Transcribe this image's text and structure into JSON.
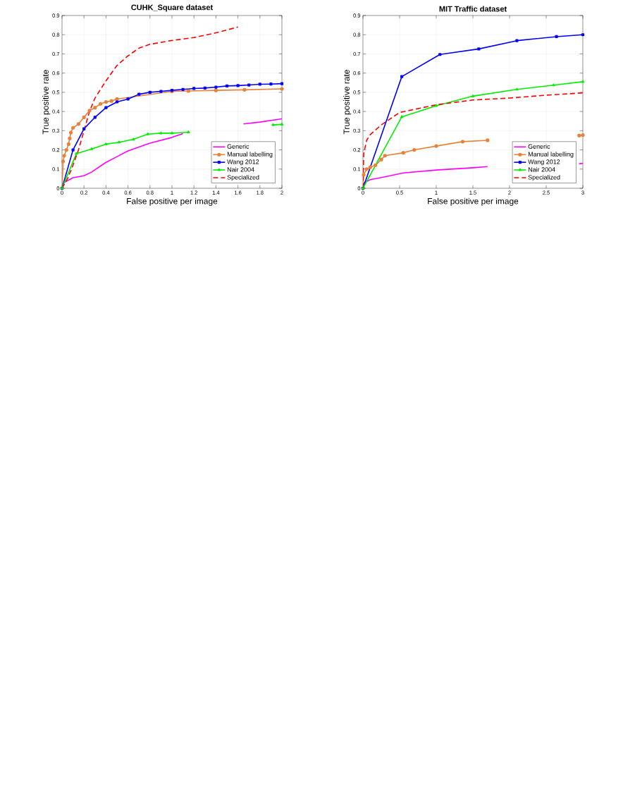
{
  "chart_data": [
    {
      "type": "line",
      "title": "CUHK_Square dataset",
      "xlabel": "False positive per image",
      "ylabel": "True positive rate",
      "xlim": [
        0,
        2
      ],
      "ylim": [
        0,
        0.9
      ],
      "xticks": [
        0,
        0.2,
        0.4,
        0.6,
        0.8,
        1,
        1.2,
        1.4,
        1.6,
        1.8,
        2
      ],
      "yticks": [
        0,
        0.1,
        0.2,
        0.3,
        0.4,
        0.5,
        0.6,
        0.7,
        0.8,
        0.9
      ],
      "grid": true,
      "legend": "bottom right",
      "series": [
        {
          "name": "Generic",
          "color": "#ff00ff",
          "marker": "none",
          "line_style": "solid",
          "x": [
            0,
            0.02,
            0.1,
            0.2,
            0.27,
            0.4,
            0.5,
            0.6,
            0.8,
            1.0,
            1.1,
            1.4,
            1.65,
            1.8,
            2
          ],
          "values": [
            0,
            0.03,
            0.055,
            0.065,
            0.085,
            0.135,
            0.165,
            0.195,
            0.235,
            0.265,
            0.285,
            null,
            0.335,
            0.345,
            0.362
          ]
        },
        {
          "name": "Manual labelling",
          "color": "#e8823a",
          "marker": "circle",
          "line_style": "solid",
          "x": [
            0,
            0.01,
            0.02,
            0.04,
            0.06,
            0.07,
            0.08,
            0.1,
            0.15,
            0.2,
            0.25,
            0.3,
            0.35,
            0.4,
            0.45,
            0.5,
            1.0,
            1.15,
            1.4,
            1.66,
            2
          ],
          "values": [
            0,
            0.14,
            0.17,
            0.2,
            0.23,
            0.26,
            0.29,
            0.315,
            0.335,
            0.37,
            0.405,
            0.42,
            0.44,
            0.45,
            0.455,
            0.465,
            0.505,
            0.507,
            0.51,
            0.513,
            0.518
          ]
        },
        {
          "name": "Wang 2012",
          "color": "#0000ff",
          "marker": "square",
          "line_style": "solid",
          "x": [
            0,
            0.1,
            0.2,
            0.3,
            0.4,
            0.5,
            0.6,
            0.7,
            0.8,
            0.9,
            1.0,
            1.1,
            1.2,
            1.3,
            1.4,
            1.5,
            1.6,
            1.7,
            1.8,
            1.9,
            2.0
          ],
          "values": [
            0,
            0.2,
            0.31,
            0.37,
            0.42,
            0.45,
            0.465,
            0.49,
            0.5,
            0.505,
            0.51,
            0.515,
            0.52,
            0.522,
            0.527,
            0.533,
            0.535,
            0.538,
            0.542,
            0.543,
            0.545
          ]
        },
        {
          "name": "Nair 2004",
          "color": "#00ee00",
          "marker": "triangle",
          "line_style": "solid",
          "x": [
            0,
            0.13,
            0.27,
            0.4,
            0.52,
            0.65,
            0.78,
            0.9,
            1.0,
            1.15,
            1.5,
            1.92,
            2
          ],
          "values": [
            0,
            0.18,
            0.205,
            0.23,
            0.24,
            0.255,
            0.282,
            0.287,
            0.287,
            0.292,
            null,
            0.33,
            0.333
          ]
        },
        {
          "name": "Specialized",
          "color": "#ff0000",
          "marker": "none",
          "line_style": "dashed",
          "x": [
            0,
            0.05,
            0.1,
            0.15,
            0.2,
            0.25,
            0.3,
            0.4,
            0.5,
            0.6,
            0.7,
            0.8,
            1.0,
            1.2,
            1.4,
            1.6
          ],
          "values": [
            0,
            0.05,
            0.12,
            0.2,
            0.3,
            0.4,
            0.47,
            0.56,
            0.64,
            0.69,
            0.73,
            0.75,
            0.77,
            0.785,
            0.81,
            0.84
          ]
        }
      ]
    },
    {
      "type": "line",
      "title": "MIT Traffic dataset",
      "xlabel": "False positive per image",
      "ylabel": "True positive rate",
      "xlim": [
        0,
        3
      ],
      "ylim": [
        0,
        0.9
      ],
      "xticks": [
        0,
        0.5,
        1,
        1.5,
        2,
        2.5,
        3
      ],
      "yticks": [
        0,
        0.1,
        0.2,
        0.3,
        0.4,
        0.5,
        0.6,
        0.7,
        0.8,
        0.9
      ],
      "grid": true,
      "legend": "bottom right",
      "series": [
        {
          "name": "Generic",
          "color": "#ff00ff",
          "marker": "none",
          "line_style": "solid",
          "x": [
            0,
            0.02,
            0.1,
            0.3,
            0.55,
            1.0,
            1.5,
            1.7,
            2.3,
            2.95,
            3
          ],
          "values": [
            0,
            0.03,
            0.045,
            0.06,
            0.08,
            0.095,
            0.107,
            0.113,
            null,
            0.128,
            0.13
          ]
        },
        {
          "name": "Manual labelling",
          "color": "#e8823a",
          "marker": "circle",
          "line_style": "solid",
          "x": [
            0,
            0.01,
            0.05,
            0.1,
            0.17,
            0.25,
            0.3,
            0.55,
            0.7,
            1.0,
            1.36,
            1.7,
            2.3,
            2.95,
            3
          ],
          "values": [
            0,
            0.07,
            0.1,
            0.11,
            0.12,
            0.15,
            0.17,
            0.185,
            0.2,
            0.22,
            0.243,
            0.25,
            null,
            0.275,
            0.277
          ]
        },
        {
          "name": "Wang 2012",
          "color": "#0000ff",
          "marker": "square",
          "line_style": "solid",
          "x": [
            0,
            0.53,
            1.05,
            1.58,
            2.1,
            2.64,
            3
          ],
          "values": [
            0,
            0.582,
            0.697,
            0.726,
            0.769,
            0.79,
            0.8
          ]
        },
        {
          "name": "Nair 2004",
          "color": "#00ee00",
          "marker": "triangle",
          "line_style": "solid",
          "x": [
            0,
            0.53,
            1.0,
            1.5,
            2.1,
            2.6,
            3
          ],
          "values": [
            0,
            0.372,
            0.43,
            0.48,
            0.515,
            0.537,
            0.555
          ]
        },
        {
          "name": "Specialized",
          "color": "#ff0000",
          "marker": "none",
          "line_style": "dashed",
          "x": [
            0,
            0.01,
            0.05,
            0.1,
            0.25,
            0.5,
            1.0,
            1.5,
            2.0,
            2.5,
            3
          ],
          "values": [
            0,
            0.18,
            0.25,
            0.28,
            0.33,
            0.395,
            0.435,
            0.46,
            0.47,
            0.485,
            0.497
          ]
        }
      ]
    }
  ]
}
